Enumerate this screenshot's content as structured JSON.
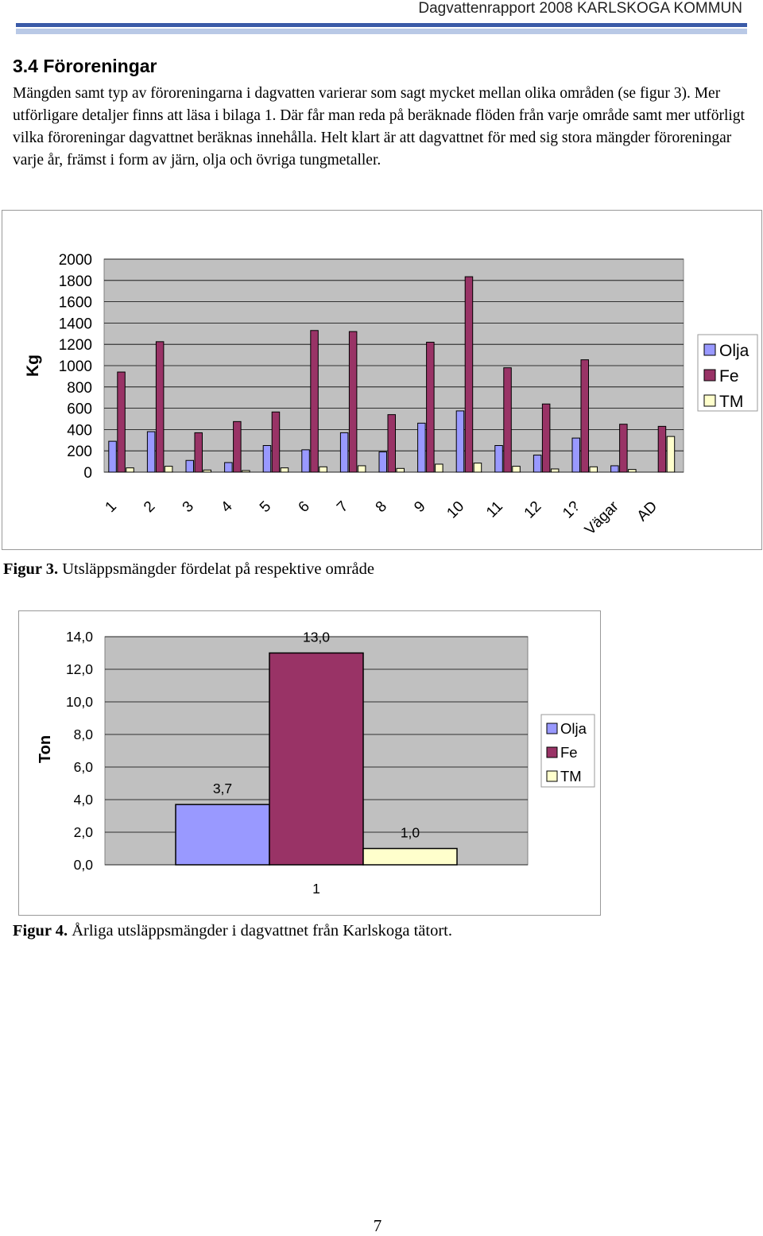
{
  "header": {
    "title": "Dagvattenrapport 2008 KARLSKOGA KOMMUN"
  },
  "section": {
    "heading": "3.4 Föroreningar",
    "paragraph": "Mängden samt typ av föroreningarna i dagvatten varierar som sagt mycket mellan olika områden (se figur 3). Mer utförligare detaljer finns att läsa i bilaga 1. Där får man reda på beräknade flöden från varje område samt mer utförligt vilka föroreningar dagvattnet beräknas innehålla. Helt klart är att dagvattnet för med sig stora mängder föroreningar varje år, främst i form av järn, olja och övriga tungmetaller."
  },
  "colors": {
    "olja": "#9999ff",
    "fe": "#993366",
    "tm": "#ffffcc",
    "plot_bg": "#c0c0c0"
  },
  "figures": [
    {
      "label": "Figur 3.",
      "text": " Utsläppsmängder fördelat på respektive område"
    },
    {
      "label": "Figur 4.",
      "text": " Årliga utsläppsmängder i dagvattnet från Karlskoga tätort."
    }
  ],
  "chart_data": [
    {
      "type": "bar",
      "ylabel": "Kg",
      "ylim": [
        0,
        2000
      ],
      "yticks": [
        "2000",
        "1800",
        "1600",
        "1400",
        "1200",
        "1000",
        "800",
        "600",
        "400",
        "200",
        "0"
      ],
      "categories": [
        "1",
        "2",
        "3",
        "4",
        "5",
        "6",
        "7",
        "8",
        "9",
        "10",
        "11",
        "12",
        "1?",
        "Vägar",
        "AD"
      ],
      "series": [
        {
          "name": "Olja",
          "values": [
            290,
            380,
            110,
            90,
            250,
            210,
            370,
            190,
            460,
            575,
            250,
            160,
            320,
            60,
            0
          ]
        },
        {
          "name": "Fe",
          "values": [
            940,
            1225,
            370,
            475,
            565,
            1330,
            1320,
            540,
            1220,
            1835,
            980,
            640,
            1055,
            450,
            430
          ]
        },
        {
          "name": "TM",
          "values": [
            40,
            55,
            20,
            15,
            40,
            50,
            60,
            35,
            75,
            85,
            55,
            30,
            50,
            25,
            335
          ]
        }
      ],
      "legend": "right",
      "grid": true
    },
    {
      "type": "bar",
      "ylabel": "Ton",
      "ylim": [
        0,
        14
      ],
      "yticks": [
        "14,0",
        "12,0",
        "10,0",
        "8,0",
        "6,0",
        "4,0",
        "2,0",
        "0,0"
      ],
      "categories": [
        "1"
      ],
      "series": [
        {
          "name": "Olja",
          "values": [
            3.7
          ],
          "label": "3,7"
        },
        {
          "name": "Fe",
          "values": [
            13.0
          ],
          "label": "13,0"
        },
        {
          "name": "TM",
          "values": [
            1.0
          ],
          "label": "1,0"
        }
      ],
      "legend": "right",
      "grid": true
    }
  ],
  "page_number": "7"
}
